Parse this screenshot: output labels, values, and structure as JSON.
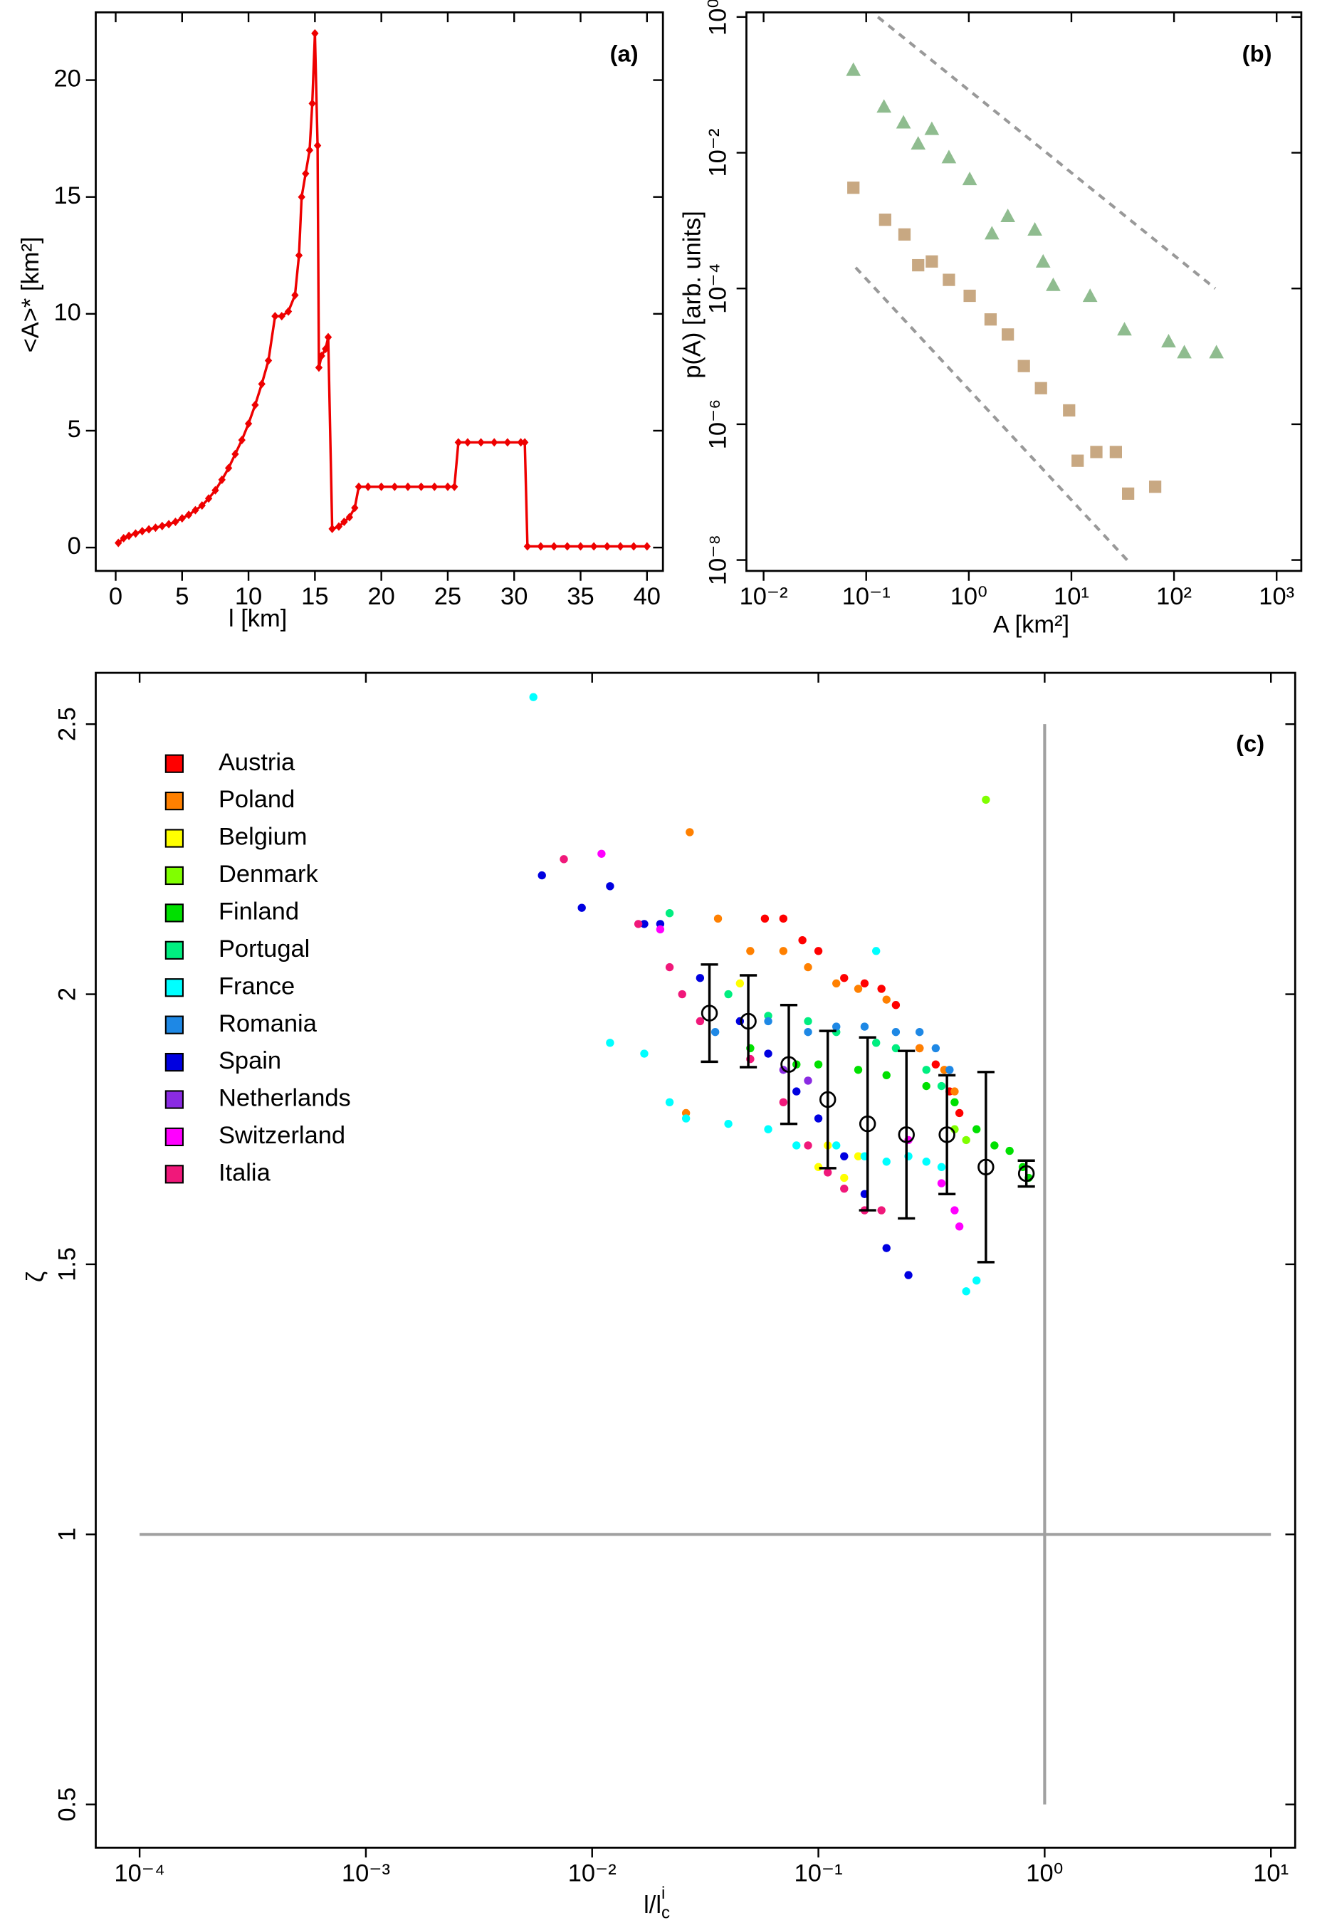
{
  "chart_data": [
    {
      "type": "line",
      "label": "(a)",
      "xlabel": "l [km]",
      "ylabel": "<A>* [km²]",
      "xlim": [
        -1.5,
        41.2
      ],
      "ylim": [
        -1.0,
        22.9
      ],
      "xticks": [
        0,
        5,
        10,
        15,
        20,
        25,
        30,
        35,
        40
      ],
      "yticks": [
        0,
        5,
        10,
        15,
        20
      ],
      "series": [
        {
          "color": "#ee0000",
          "marker": "diamond",
          "x": [
            0.2,
            0.6,
            1,
            1.5,
            2,
            2.5,
            3,
            3.5,
            4,
            4.5,
            5,
            5.5,
            6,
            6.5,
            7,
            7.5,
            8,
            8.5,
            9,
            9.5,
            10,
            10.5,
            11,
            11.5,
            12,
            12.5,
            13,
            13.5,
            13.8,
            14,
            14.3,
            14.6,
            14.8,
            15,
            15.2,
            15.3,
            15.5,
            15.8,
            16,
            16.3,
            16.8,
            17.2,
            17.6,
            18,
            18.3,
            19,
            20,
            21,
            22,
            23,
            24,
            25,
            25.5,
            25.8,
            26.5,
            27.5,
            28.5,
            29.5,
            30.5,
            30.8,
            31,
            32,
            33,
            34,
            35,
            36,
            37,
            38,
            39,
            40
          ],
          "values": [
            0.2,
            0.4,
            0.5,
            0.6,
            0.7,
            0.78,
            0.85,
            0.92,
            1.0,
            1.1,
            1.25,
            1.4,
            1.6,
            1.8,
            2.1,
            2.45,
            2.9,
            3.4,
            4.0,
            4.6,
            5.3,
            6.1,
            7.0,
            8.0,
            9.9,
            9.9,
            10.1,
            10.8,
            12.5,
            15.0,
            16.0,
            17.0,
            19.0,
            22.0,
            17.2,
            7.7,
            8.2,
            8.5,
            9.0,
            0.8,
            0.9,
            1.1,
            1.3,
            1.7,
            2.6,
            2.6,
            2.6,
            2.6,
            2.6,
            2.6,
            2.6,
            2.6,
            2.6,
            4.5,
            4.5,
            4.5,
            4.5,
            4.5,
            4.5,
            4.5,
            0.05,
            0.05,
            0.05,
            0.05,
            0.05,
            0.05,
            0.05,
            0.05,
            0.05,
            0.05
          ]
        }
      ]
    },
    {
      "type": "scatter",
      "label": "(b)",
      "xlabel": "A [km²]",
      "ylabel": "p(A) [arb. units]",
      "log_x": true,
      "log_y": true,
      "xlim": [
        0.0068,
        1740
      ],
      "ylim": [
        6.9e-09,
        1.17
      ],
      "xticks": [
        {
          "value": 0.01,
          "label": "10⁻²"
        },
        {
          "value": 0.1,
          "label": "10⁻¹"
        },
        {
          "value": 1,
          "label": "10⁰"
        },
        {
          "value": 10,
          "label": "10¹"
        },
        {
          "value": 100,
          "label": "10²"
        },
        {
          "value": 1000,
          "label": "10³"
        }
      ],
      "yticks": [
        {
          "value": 1e-08,
          "label": "10⁻⁸"
        },
        {
          "value": 1e-06,
          "label": "10⁻⁶"
        },
        {
          "value": 0.0001,
          "label": "10⁻⁴"
        },
        {
          "value": 0.01,
          "label": "10⁻²"
        },
        {
          "value": 1,
          "label": "10⁰"
        }
      ],
      "series": [
        {
          "color": "#8fbc8f",
          "marker": "triangle",
          "x": [
            0.075,
            0.149,
            0.231,
            0.321,
            0.436,
            0.64,
            1.02,
            2.4,
            1.68,
            4.4,
            5.3,
            6.65,
            15.2,
            32.9,
            88.5,
            126,
            259
          ],
          "values": [
            0.167,
            0.048,
            0.028,
            0.0137,
            0.0225,
            0.0086,
            0.0041,
            0.00117,
            0.00065,
            0.00074,
            0.00025,
            0.000113,
            7.8e-05,
            2.5e-05,
            1.67e-05,
            1.15e-05,
            1.15e-05
          ]
        },
        {
          "color": "#c8a882",
          "marker": "square",
          "x": [
            0.075,
            0.153,
            0.236,
            0.321,
            0.436,
            0.64,
            1.02,
            1.63,
            2.4,
            3.44,
            5.05,
            9.5,
            11.5,
            17.5,
            27.1,
            35.7,
            65.5
          ],
          "values": [
            0.00305,
            0.00103,
            0.000625,
            0.00022,
            0.00025,
            0.000134,
            7.8e-05,
            3.5e-05,
            2.1e-05,
            7.2e-06,
            3.4e-06,
            1.6e-06,
            2.9e-07,
            3.9e-07,
            3.9e-07,
            9.5e-08,
            1.2e-07
          ]
        }
      ],
      "reference_lines": [
        {
          "color": "#999999",
          "style": "dashed",
          "x": [
            0.13,
            252
          ],
          "values": [
            1,
            0.0001
          ]
        },
        {
          "color": "#999999",
          "style": "dashed",
          "x": [
            0.079,
            36.7
          ],
          "values": [
            0.000203,
            9.2e-09
          ]
        }
      ]
    },
    {
      "type": "scatter",
      "label": "(c)",
      "xlabel": {
        "text": "l/l",
        "sub": "c",
        "sup": "i"
      },
      "ylabel": "ζ",
      "log_x": true,
      "legend": "upper left",
      "xlim": [
        6.4e-05,
        12.8
      ],
      "ylim": [
        0.42,
        2.595
      ],
      "xticks": [
        {
          "value": 0.0001,
          "label": "10⁻⁴"
        },
        {
          "value": 0.001,
          "label": "10⁻³"
        },
        {
          "value": 0.01,
          "label": "10⁻²"
        },
        {
          "value": 0.1,
          "label": "10⁻¹"
        },
        {
          "value": 1,
          "label": "10⁰"
        },
        {
          "value": 10,
          "label": "10¹"
        }
      ],
      "yticks": [
        0.5,
        1,
        1.5,
        2,
        2.5
      ],
      "series": [
        {
          "name": "Austria",
          "color": "#ff0000",
          "x": [
            0.058,
            0.07,
            0.085,
            0.1,
            0.13,
            0.16,
            0.19,
            0.22,
            0.28,
            0.33,
            0.38,
            0.42
          ],
          "values": [
            2.14,
            2.14,
            2.1,
            2.08,
            2.03,
            2.02,
            2.01,
            1.98,
            1.9,
            1.87,
            1.82,
            1.78
          ]
        },
        {
          "name": "Poland",
          "color": "#ff8000",
          "x": [
            0.026,
            0.027,
            0.036,
            0.05,
            0.07,
            0.09,
            0.12,
            0.15,
            0.2,
            0.28,
            0.36,
            0.4
          ],
          "values": [
            1.78,
            2.3,
            2.14,
            2.08,
            2.08,
            2.05,
            2.02,
            2.01,
            1.99,
            1.9,
            1.86,
            1.82
          ]
        },
        {
          "name": "Belgium",
          "color": "#ffff00",
          "x": [
            0.045,
            0.1,
            0.13,
            0.15,
            0.11
          ],
          "values": [
            2.02,
            1.68,
            1.66,
            1.7,
            1.72
          ]
        },
        {
          "name": "Denmark",
          "color": "#80ff00",
          "x": [
            0.55,
            0.4,
            0.45
          ],
          "values": [
            2.36,
            1.75,
            1.73
          ]
        },
        {
          "name": "Finland",
          "color": "#00e000",
          "x": [
            0.05,
            0.08,
            0.1,
            0.15,
            0.2,
            0.3,
            0.4,
            0.5,
            0.6,
            0.7,
            0.8,
            0.85
          ],
          "values": [
            1.9,
            1.87,
            1.87,
            1.86,
            1.85,
            1.83,
            1.8,
            1.75,
            1.72,
            1.71,
            1.68,
            1.66
          ]
        },
        {
          "name": "Portugal",
          "color": "#00ee80",
          "x": [
            0.022,
            0.04,
            0.06,
            0.09,
            0.12,
            0.18,
            0.22,
            0.3,
            0.35
          ],
          "values": [
            2.15,
            2.0,
            1.96,
            1.95,
            1.93,
            1.91,
            1.9,
            1.86,
            1.83
          ]
        },
        {
          "name": "France",
          "color": "#00ffff",
          "x": [
            0.0055,
            0.012,
            0.017,
            0.022,
            0.026,
            0.04,
            0.06,
            0.08,
            0.12,
            0.16,
            0.2,
            0.25,
            0.3,
            0.35,
            0.18,
            0.45,
            0.5
          ],
          "values": [
            2.55,
            1.91,
            1.89,
            1.8,
            1.77,
            1.76,
            1.75,
            1.72,
            1.72,
            1.7,
            1.69,
            1.7,
            1.69,
            1.68,
            2.08,
            1.45,
            1.47
          ]
        },
        {
          "name": "Romania",
          "color": "#1e88e5",
          "x": [
            0.035,
            0.06,
            0.09,
            0.12,
            0.16,
            0.22,
            0.28,
            0.33,
            0.38
          ],
          "values": [
            1.93,
            1.95,
            1.93,
            1.94,
            1.94,
            1.93,
            1.93,
            1.9,
            1.86
          ]
        },
        {
          "name": "Spain",
          "color": "#0000e0",
          "x": [
            0.006,
            0.009,
            0.012,
            0.017,
            0.02,
            0.03,
            0.045,
            0.06,
            0.08,
            0.1,
            0.13,
            0.16,
            0.2,
            0.25
          ],
          "values": [
            2.22,
            2.16,
            2.2,
            2.13,
            2.13,
            2.03,
            1.95,
            1.89,
            1.82,
            1.77,
            1.7,
            1.63,
            1.53,
            1.48
          ]
        },
        {
          "name": "Netherlands",
          "color": "#8a2be2",
          "x": [
            0.07,
            0.09
          ],
          "values": [
            1.86,
            1.84
          ]
        },
        {
          "name": "Switzerland",
          "color": "#ff00ff",
          "x": [
            0.011,
            0.02,
            0.35,
            0.4,
            0.42,
            0.25
          ],
          "values": [
            2.26,
            2.12,
            1.65,
            1.6,
            1.57,
            1.73
          ]
        },
        {
          "name": "Italia",
          "color": "#f0187a",
          "x": [
            0.0075,
            0.016,
            0.022,
            0.025,
            0.03,
            0.05,
            0.07,
            0.09,
            0.11,
            0.13,
            0.16,
            0.19
          ],
          "values": [
            2.25,
            2.13,
            2.05,
            2.0,
            1.95,
            1.88,
            1.8,
            1.72,
            1.67,
            1.64,
            1.6,
            1.6
          ]
        }
      ],
      "errorbars": {
        "color": "#000000",
        "marker": "open-circle",
        "x": [
          0.033,
          0.049,
          0.074,
          0.11,
          0.165,
          0.245,
          0.37,
          0.55,
          0.83
        ],
        "values": [
          1.965,
          1.95,
          1.87,
          1.805,
          1.76,
          1.74,
          1.74,
          1.68,
          1.668
        ],
        "errors": [
          0.09,
          0.085,
          0.11,
          0.127,
          0.16,
          0.155,
          0.11,
          0.176,
          0.024
        ]
      },
      "reference_lines": [
        {
          "color": "#a0a0a0",
          "style": "solid",
          "x": [
            0.0001,
            10
          ],
          "values": [
            1,
            1
          ]
        },
        {
          "color": "#a0a0a0",
          "style": "solid",
          "x": [
            1,
            1
          ],
          "values": [
            0.5,
            2.5
          ]
        }
      ]
    }
  ]
}
